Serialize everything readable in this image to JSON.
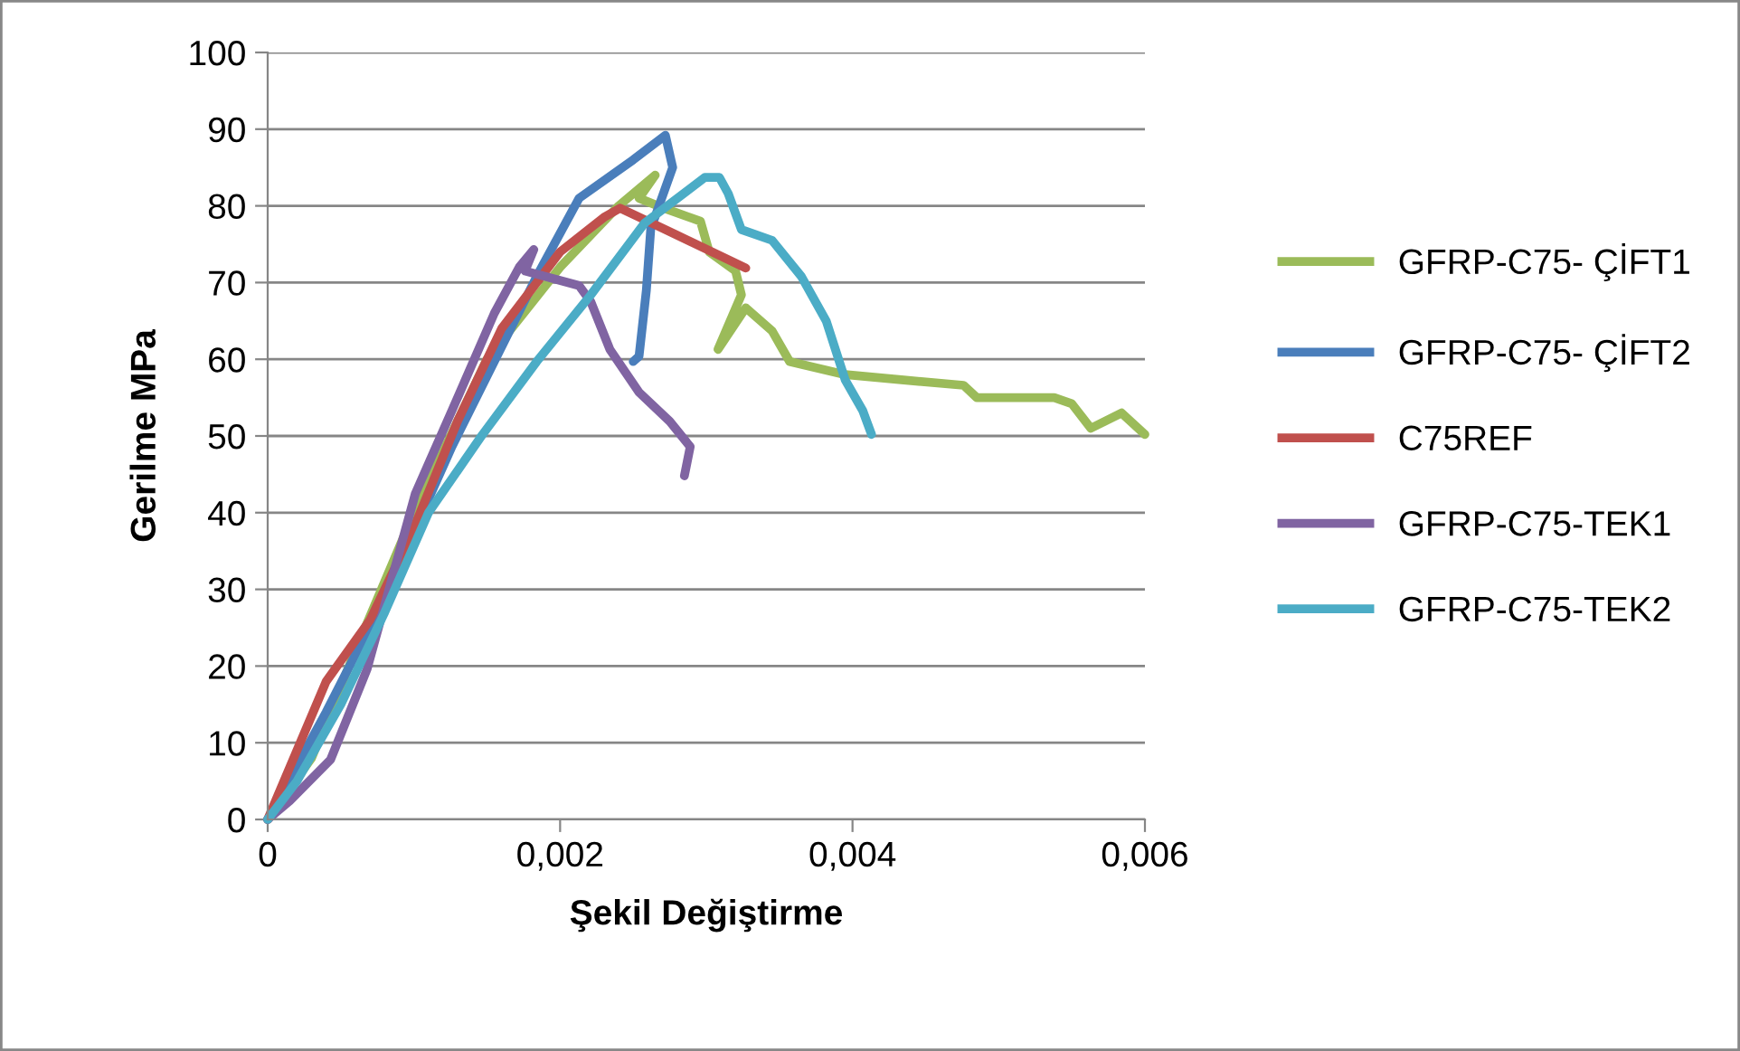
{
  "chart_data": {
    "type": "line",
    "xlabel": "Şekil Değiştirme",
    "ylabel": "Gerilme MPa",
    "xlim": [
      0,
      0.006
    ],
    "xticks": [
      0,
      {
        "value": 0.002,
        "label": "0,002"
      },
      {
        "value": 0.004,
        "label": "0,004"
      },
      {
        "value": 0.006,
        "label": "0,006"
      }
    ],
    "ylim": [
      0,
      100
    ],
    "yticks": [
      0,
      10,
      20,
      30,
      40,
      50,
      60,
      70,
      80,
      90,
      100
    ],
    "grid": "y",
    "legend": "right",
    "marker": "none",
    "line_style": "solid",
    "series": [
      {
        "name": "GFRP-C75- ÇİFT1",
        "color": "#9bbb59",
        "x": [
          0,
          0.0003,
          0.0006,
          0.001,
          0.0015,
          0.002,
          0.0024,
          0.00265,
          0.00254,
          0.00271,
          0.00296,
          0.00302,
          0.0032,
          0.00324,
          0.00308,
          0.00327,
          0.00345,
          0.00357,
          0.00395,
          0.00435,
          0.00476,
          0.00485,
          0.00538,
          0.0055,
          0.00563,
          0.00584,
          0.006
        ],
        "values": [
          0,
          8,
          22,
          40,
          60,
          72,
          80,
          84,
          81,
          79.7,
          78,
          74,
          71.5,
          68.4,
          61.3,
          66.7,
          63.7,
          59.7,
          58,
          57.3,
          56.6,
          55,
          55,
          54.2,
          51,
          53,
          50.2
        ]
      },
      {
        "name": "GFRP-C75- ÇİFT2",
        "color": "#4a7ebb",
        "x": [
          0,
          0.0004,
          0.0008,
          0.00126,
          0.00184,
          0.00213,
          0.0025,
          0.00272,
          0.00277,
          0.00262,
          0.00259,
          0.00254,
          0.0025
        ],
        "values": [
          0,
          14,
          29,
          48.6,
          70.8,
          81,
          86,
          89.2,
          85,
          77,
          69,
          60.4,
          59.7
        ]
      },
      {
        "name": "C75REF",
        "color": "#c0504d",
        "x": [
          0,
          0.0004,
          0.0007,
          0.001,
          0.0013,
          0.0016,
          0.002,
          0.0023,
          0.00241,
          0.0026,
          0.00327
        ],
        "values": [
          0,
          18,
          26,
          38,
          52,
          64,
          74,
          78.5,
          79.7,
          78,
          71.9
        ]
      },
      {
        "name": "GFRP-C75-TEK1",
        "color": "#8064a2",
        "x": [
          0,
          0.00015,
          0.00043,
          0.00068,
          0.00101,
          0.00126,
          0.00155,
          0.00172,
          0.00182,
          0.00176,
          0.00213,
          0.00221,
          0.00234,
          0.00254,
          0.00275,
          0.00289,
          0.00285
        ],
        "values": [
          0,
          2.4,
          7.8,
          19.6,
          42.5,
          53.3,
          66,
          72,
          74.3,
          71.5,
          69.6,
          67.5,
          61.3,
          55.7,
          51.9,
          48.6,
          44.8
        ]
      },
      {
        "name": "GFRP-C75-TEK2",
        "color": "#4bacc6",
        "x": [
          0,
          0.0002,
          0.0005,
          0.0008,
          0.0011,
          0.00147,
          0.00184,
          0.00221,
          0.00258,
          0.00299,
          0.00309,
          0.00315,
          0.00324,
          0.00345,
          0.00365,
          0.00382,
          0.00395,
          0.00407,
          0.00413
        ],
        "values": [
          0,
          5,
          15,
          27,
          40,
          50.2,
          59.7,
          68.4,
          77.8,
          83.7,
          83.7,
          81.6,
          76.9,
          75.5,
          70.8,
          65,
          57.3,
          53.3,
          50.2
        ]
      }
    ]
  }
}
